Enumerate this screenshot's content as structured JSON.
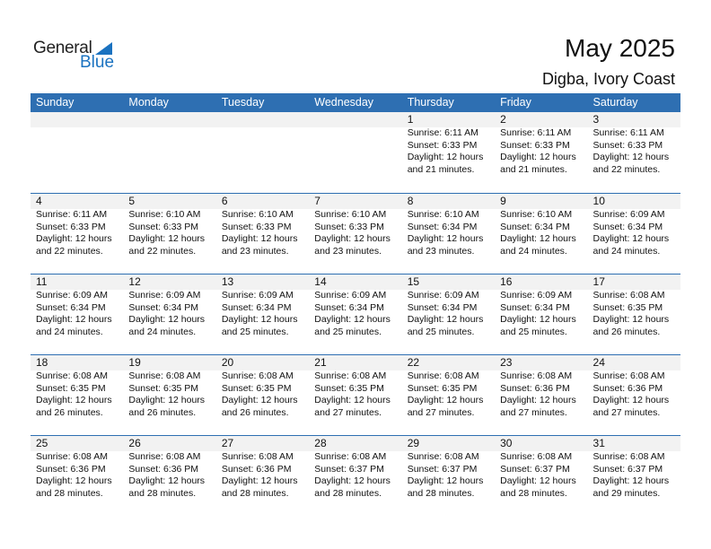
{
  "logo": {
    "general": "General",
    "blue": "Blue"
  },
  "title": "May 2025",
  "location": "Digba, Ivory Coast",
  "days": [
    "Sunday",
    "Monday",
    "Tuesday",
    "Wednesday",
    "Thursday",
    "Friday",
    "Saturday"
  ],
  "colors": {
    "header": "#2e6fb2",
    "band": "#f2f2f2"
  },
  "weeks": [
    [
      null,
      null,
      null,
      null,
      {
        "day": "1",
        "sunrise": "Sunrise: 6:11 AM",
        "sunset": "Sunset: 6:33 PM",
        "daylight1": "Daylight: 12 hours",
        "daylight2": "and 21 minutes."
      },
      {
        "day": "2",
        "sunrise": "Sunrise: 6:11 AM",
        "sunset": "Sunset: 6:33 PM",
        "daylight1": "Daylight: 12 hours",
        "daylight2": "and 21 minutes."
      },
      {
        "day": "3",
        "sunrise": "Sunrise: 6:11 AM",
        "sunset": "Sunset: 6:33 PM",
        "daylight1": "Daylight: 12 hours",
        "daylight2": "and 22 minutes."
      }
    ],
    [
      {
        "day": "4",
        "sunrise": "Sunrise: 6:11 AM",
        "sunset": "Sunset: 6:33 PM",
        "daylight1": "Daylight: 12 hours",
        "daylight2": "and 22 minutes."
      },
      {
        "day": "5",
        "sunrise": "Sunrise: 6:10 AM",
        "sunset": "Sunset: 6:33 PM",
        "daylight1": "Daylight: 12 hours",
        "daylight2": "and 22 minutes."
      },
      {
        "day": "6",
        "sunrise": "Sunrise: 6:10 AM",
        "sunset": "Sunset: 6:33 PM",
        "daylight1": "Daylight: 12 hours",
        "daylight2": "and 23 minutes."
      },
      {
        "day": "7",
        "sunrise": "Sunrise: 6:10 AM",
        "sunset": "Sunset: 6:33 PM",
        "daylight1": "Daylight: 12 hours",
        "daylight2": "and 23 minutes."
      },
      {
        "day": "8",
        "sunrise": "Sunrise: 6:10 AM",
        "sunset": "Sunset: 6:34 PM",
        "daylight1": "Daylight: 12 hours",
        "daylight2": "and 23 minutes."
      },
      {
        "day": "9",
        "sunrise": "Sunrise: 6:10 AM",
        "sunset": "Sunset: 6:34 PM",
        "daylight1": "Daylight: 12 hours",
        "daylight2": "and 24 minutes."
      },
      {
        "day": "10",
        "sunrise": "Sunrise: 6:09 AM",
        "sunset": "Sunset: 6:34 PM",
        "daylight1": "Daylight: 12 hours",
        "daylight2": "and 24 minutes."
      }
    ],
    [
      {
        "day": "11",
        "sunrise": "Sunrise: 6:09 AM",
        "sunset": "Sunset: 6:34 PM",
        "daylight1": "Daylight: 12 hours",
        "daylight2": "and 24 minutes."
      },
      {
        "day": "12",
        "sunrise": "Sunrise: 6:09 AM",
        "sunset": "Sunset: 6:34 PM",
        "daylight1": "Daylight: 12 hours",
        "daylight2": "and 24 minutes."
      },
      {
        "day": "13",
        "sunrise": "Sunrise: 6:09 AM",
        "sunset": "Sunset: 6:34 PM",
        "daylight1": "Daylight: 12 hours",
        "daylight2": "and 25 minutes."
      },
      {
        "day": "14",
        "sunrise": "Sunrise: 6:09 AM",
        "sunset": "Sunset: 6:34 PM",
        "daylight1": "Daylight: 12 hours",
        "daylight2": "and 25 minutes."
      },
      {
        "day": "15",
        "sunrise": "Sunrise: 6:09 AM",
        "sunset": "Sunset: 6:34 PM",
        "daylight1": "Daylight: 12 hours",
        "daylight2": "and 25 minutes."
      },
      {
        "day": "16",
        "sunrise": "Sunrise: 6:09 AM",
        "sunset": "Sunset: 6:34 PM",
        "daylight1": "Daylight: 12 hours",
        "daylight2": "and 25 minutes."
      },
      {
        "day": "17",
        "sunrise": "Sunrise: 6:08 AM",
        "sunset": "Sunset: 6:35 PM",
        "daylight1": "Daylight: 12 hours",
        "daylight2": "and 26 minutes."
      }
    ],
    [
      {
        "day": "18",
        "sunrise": "Sunrise: 6:08 AM",
        "sunset": "Sunset: 6:35 PM",
        "daylight1": "Daylight: 12 hours",
        "daylight2": "and 26 minutes."
      },
      {
        "day": "19",
        "sunrise": "Sunrise: 6:08 AM",
        "sunset": "Sunset: 6:35 PM",
        "daylight1": "Daylight: 12 hours",
        "daylight2": "and 26 minutes."
      },
      {
        "day": "20",
        "sunrise": "Sunrise: 6:08 AM",
        "sunset": "Sunset: 6:35 PM",
        "daylight1": "Daylight: 12 hours",
        "daylight2": "and 26 minutes."
      },
      {
        "day": "21",
        "sunrise": "Sunrise: 6:08 AM",
        "sunset": "Sunset: 6:35 PM",
        "daylight1": "Daylight: 12 hours",
        "daylight2": "and 27 minutes."
      },
      {
        "day": "22",
        "sunrise": "Sunrise: 6:08 AM",
        "sunset": "Sunset: 6:35 PM",
        "daylight1": "Daylight: 12 hours",
        "daylight2": "and 27 minutes."
      },
      {
        "day": "23",
        "sunrise": "Sunrise: 6:08 AM",
        "sunset": "Sunset: 6:36 PM",
        "daylight1": "Daylight: 12 hours",
        "daylight2": "and 27 minutes."
      },
      {
        "day": "24",
        "sunrise": "Sunrise: 6:08 AM",
        "sunset": "Sunset: 6:36 PM",
        "daylight1": "Daylight: 12 hours",
        "daylight2": "and 27 minutes."
      }
    ],
    [
      {
        "day": "25",
        "sunrise": "Sunrise: 6:08 AM",
        "sunset": "Sunset: 6:36 PM",
        "daylight1": "Daylight: 12 hours",
        "daylight2": "and 28 minutes."
      },
      {
        "day": "26",
        "sunrise": "Sunrise: 6:08 AM",
        "sunset": "Sunset: 6:36 PM",
        "daylight1": "Daylight: 12 hours",
        "daylight2": "and 28 minutes."
      },
      {
        "day": "27",
        "sunrise": "Sunrise: 6:08 AM",
        "sunset": "Sunset: 6:36 PM",
        "daylight1": "Daylight: 12 hours",
        "daylight2": "and 28 minutes."
      },
      {
        "day": "28",
        "sunrise": "Sunrise: 6:08 AM",
        "sunset": "Sunset: 6:37 PM",
        "daylight1": "Daylight: 12 hours",
        "daylight2": "and 28 minutes."
      },
      {
        "day": "29",
        "sunrise": "Sunrise: 6:08 AM",
        "sunset": "Sunset: 6:37 PM",
        "daylight1": "Daylight: 12 hours",
        "daylight2": "and 28 minutes."
      },
      {
        "day": "30",
        "sunrise": "Sunrise: 6:08 AM",
        "sunset": "Sunset: 6:37 PM",
        "daylight1": "Daylight: 12 hours",
        "daylight2": "and 28 minutes."
      },
      {
        "day": "31",
        "sunrise": "Sunrise: 6:08 AM",
        "sunset": "Sunset: 6:37 PM",
        "daylight1": "Daylight: 12 hours",
        "daylight2": "and 29 minutes."
      }
    ]
  ]
}
